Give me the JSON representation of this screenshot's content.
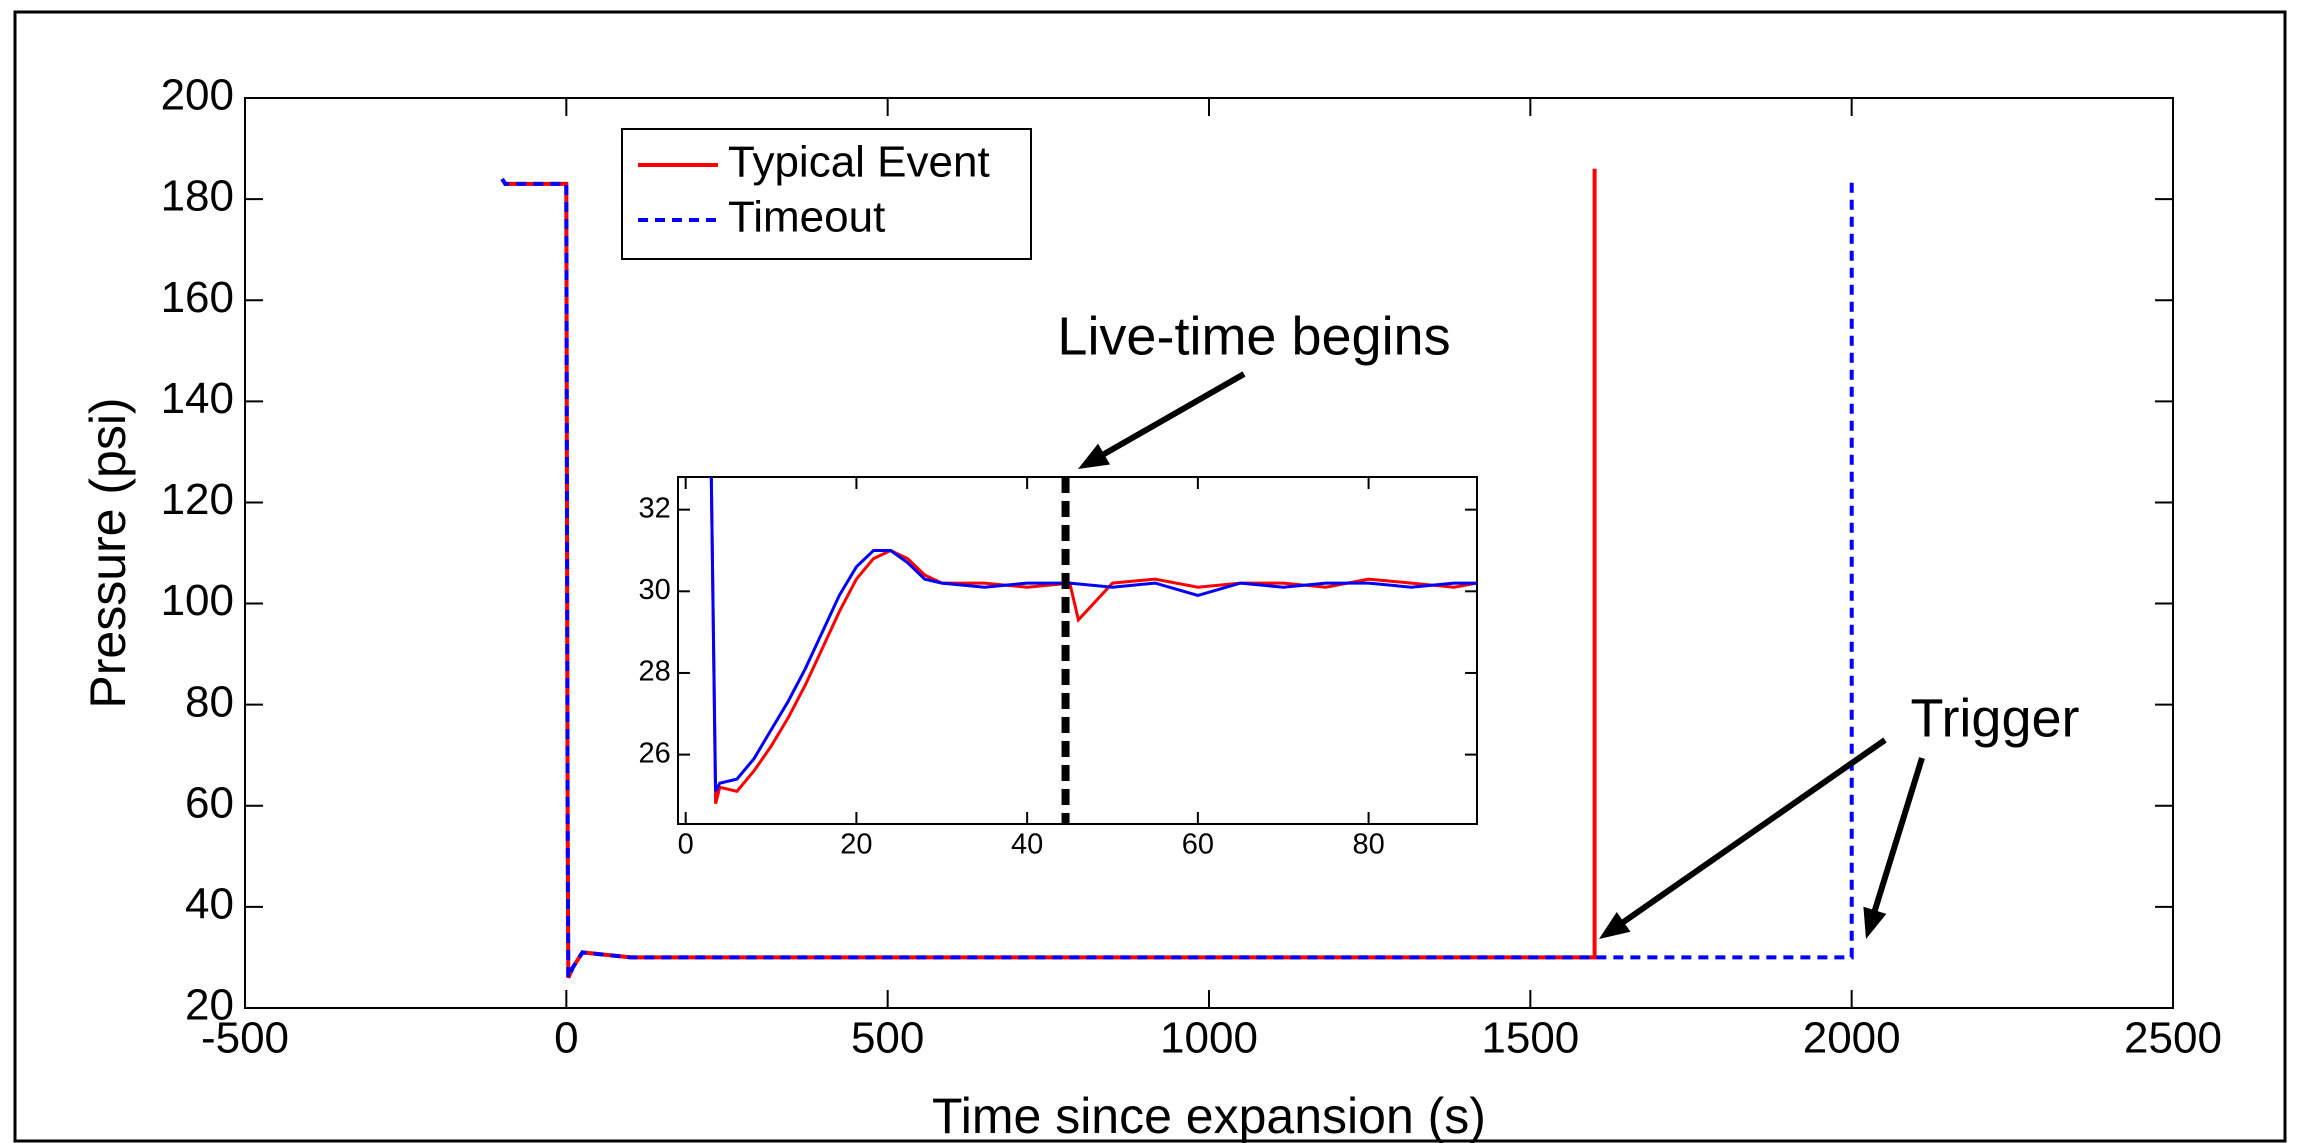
{
  "chart_data": [
    {
      "type": "line",
      "xlabel": "Time since expansion (s)",
      "ylabel": "Pressure (psi)",
      "xlim": [
        -500,
        2500
      ],
      "ylim": [
        20,
        200
      ],
      "xticks": [
        -500,
        0,
        500,
        1000,
        1500,
        2000,
        2500
      ],
      "yticks": [
        20,
        40,
        60,
        80,
        100,
        120,
        140,
        160,
        180,
        200
      ],
      "annotations": [
        "Live-time begins",
        "Trigger"
      ],
      "series": [
        {
          "name": "Typical Event",
          "color": "#ff0000",
          "linestyle": "solid",
          "x": [
            -100,
            -95,
            -5,
            0,
            2,
            3,
            10,
            25,
            100,
            500,
            1000,
            1500,
            1600,
            1600
          ],
          "values": [
            184,
            183,
            183,
            183,
            60,
            26,
            28,
            31,
            30,
            30,
            30,
            30,
            30,
            186
          ]
        },
        {
          "name": "Timeout",
          "color": "#0000ff",
          "linestyle": "dashed",
          "x": [
            -100,
            -95,
            -5,
            0,
            2,
            3,
            10,
            25,
            100,
            500,
            1000,
            1500,
            2000,
            2000
          ],
          "values": [
            184,
            183,
            183,
            183,
            60,
            26,
            28,
            31,
            30,
            30,
            30,
            30,
            30,
            184
          ]
        }
      ]
    },
    {
      "type": "line",
      "xlim": [
        -0.9,
        92.7
      ],
      "ylim": [
        24.3,
        32.8
      ],
      "xticks": [
        0,
        20,
        40,
        60,
        80
      ],
      "yticks": [
        26,
        28,
        30,
        32
      ],
      "vline": 44.5,
      "series": [
        {
          "color": "#ff0000",
          "linestyle": "solid",
          "x": [
            3,
            3.5,
            4,
            6,
            8,
            10,
            12,
            14,
            16,
            18,
            20,
            22,
            24,
            26,
            28,
            30,
            35,
            40,
            45,
            46,
            50,
            55,
            60,
            65,
            70,
            75,
            80,
            85,
            90,
            92.7
          ],
          "values": [
            32.8,
            24.8,
            25.2,
            25.1,
            25.6,
            26.2,
            26.9,
            27.7,
            28.6,
            29.5,
            30.3,
            30.8,
            31,
            30.8,
            30.4,
            30.2,
            30.2,
            30.1,
            30.2,
            29.3,
            30.2,
            30.3,
            30.1,
            30.2,
            30.2,
            30.1,
            30.3,
            30.2,
            30.1,
            30.2
          ]
        },
        {
          "color": "#0000ff",
          "linestyle": "solid",
          "x": [
            3,
            3.5,
            4,
            6,
            8,
            10,
            12,
            14,
            16,
            18,
            20,
            22,
            24,
            26,
            28,
            30,
            35,
            40,
            45,
            50,
            55,
            60,
            65,
            70,
            75,
            80,
            85,
            90,
            92.7
          ],
          "values": [
            32.8,
            25.1,
            25.3,
            25.4,
            25.9,
            26.6,
            27.3,
            28.1,
            29,
            29.9,
            30.6,
            31,
            31,
            30.7,
            30.3,
            30.2,
            30.1,
            30.2,
            30.2,
            30.1,
            30.2,
            29.9,
            30.2,
            30.1,
            30.2,
            30.2,
            30.1,
            30.2,
            30.2
          ]
        }
      ]
    }
  ]
}
